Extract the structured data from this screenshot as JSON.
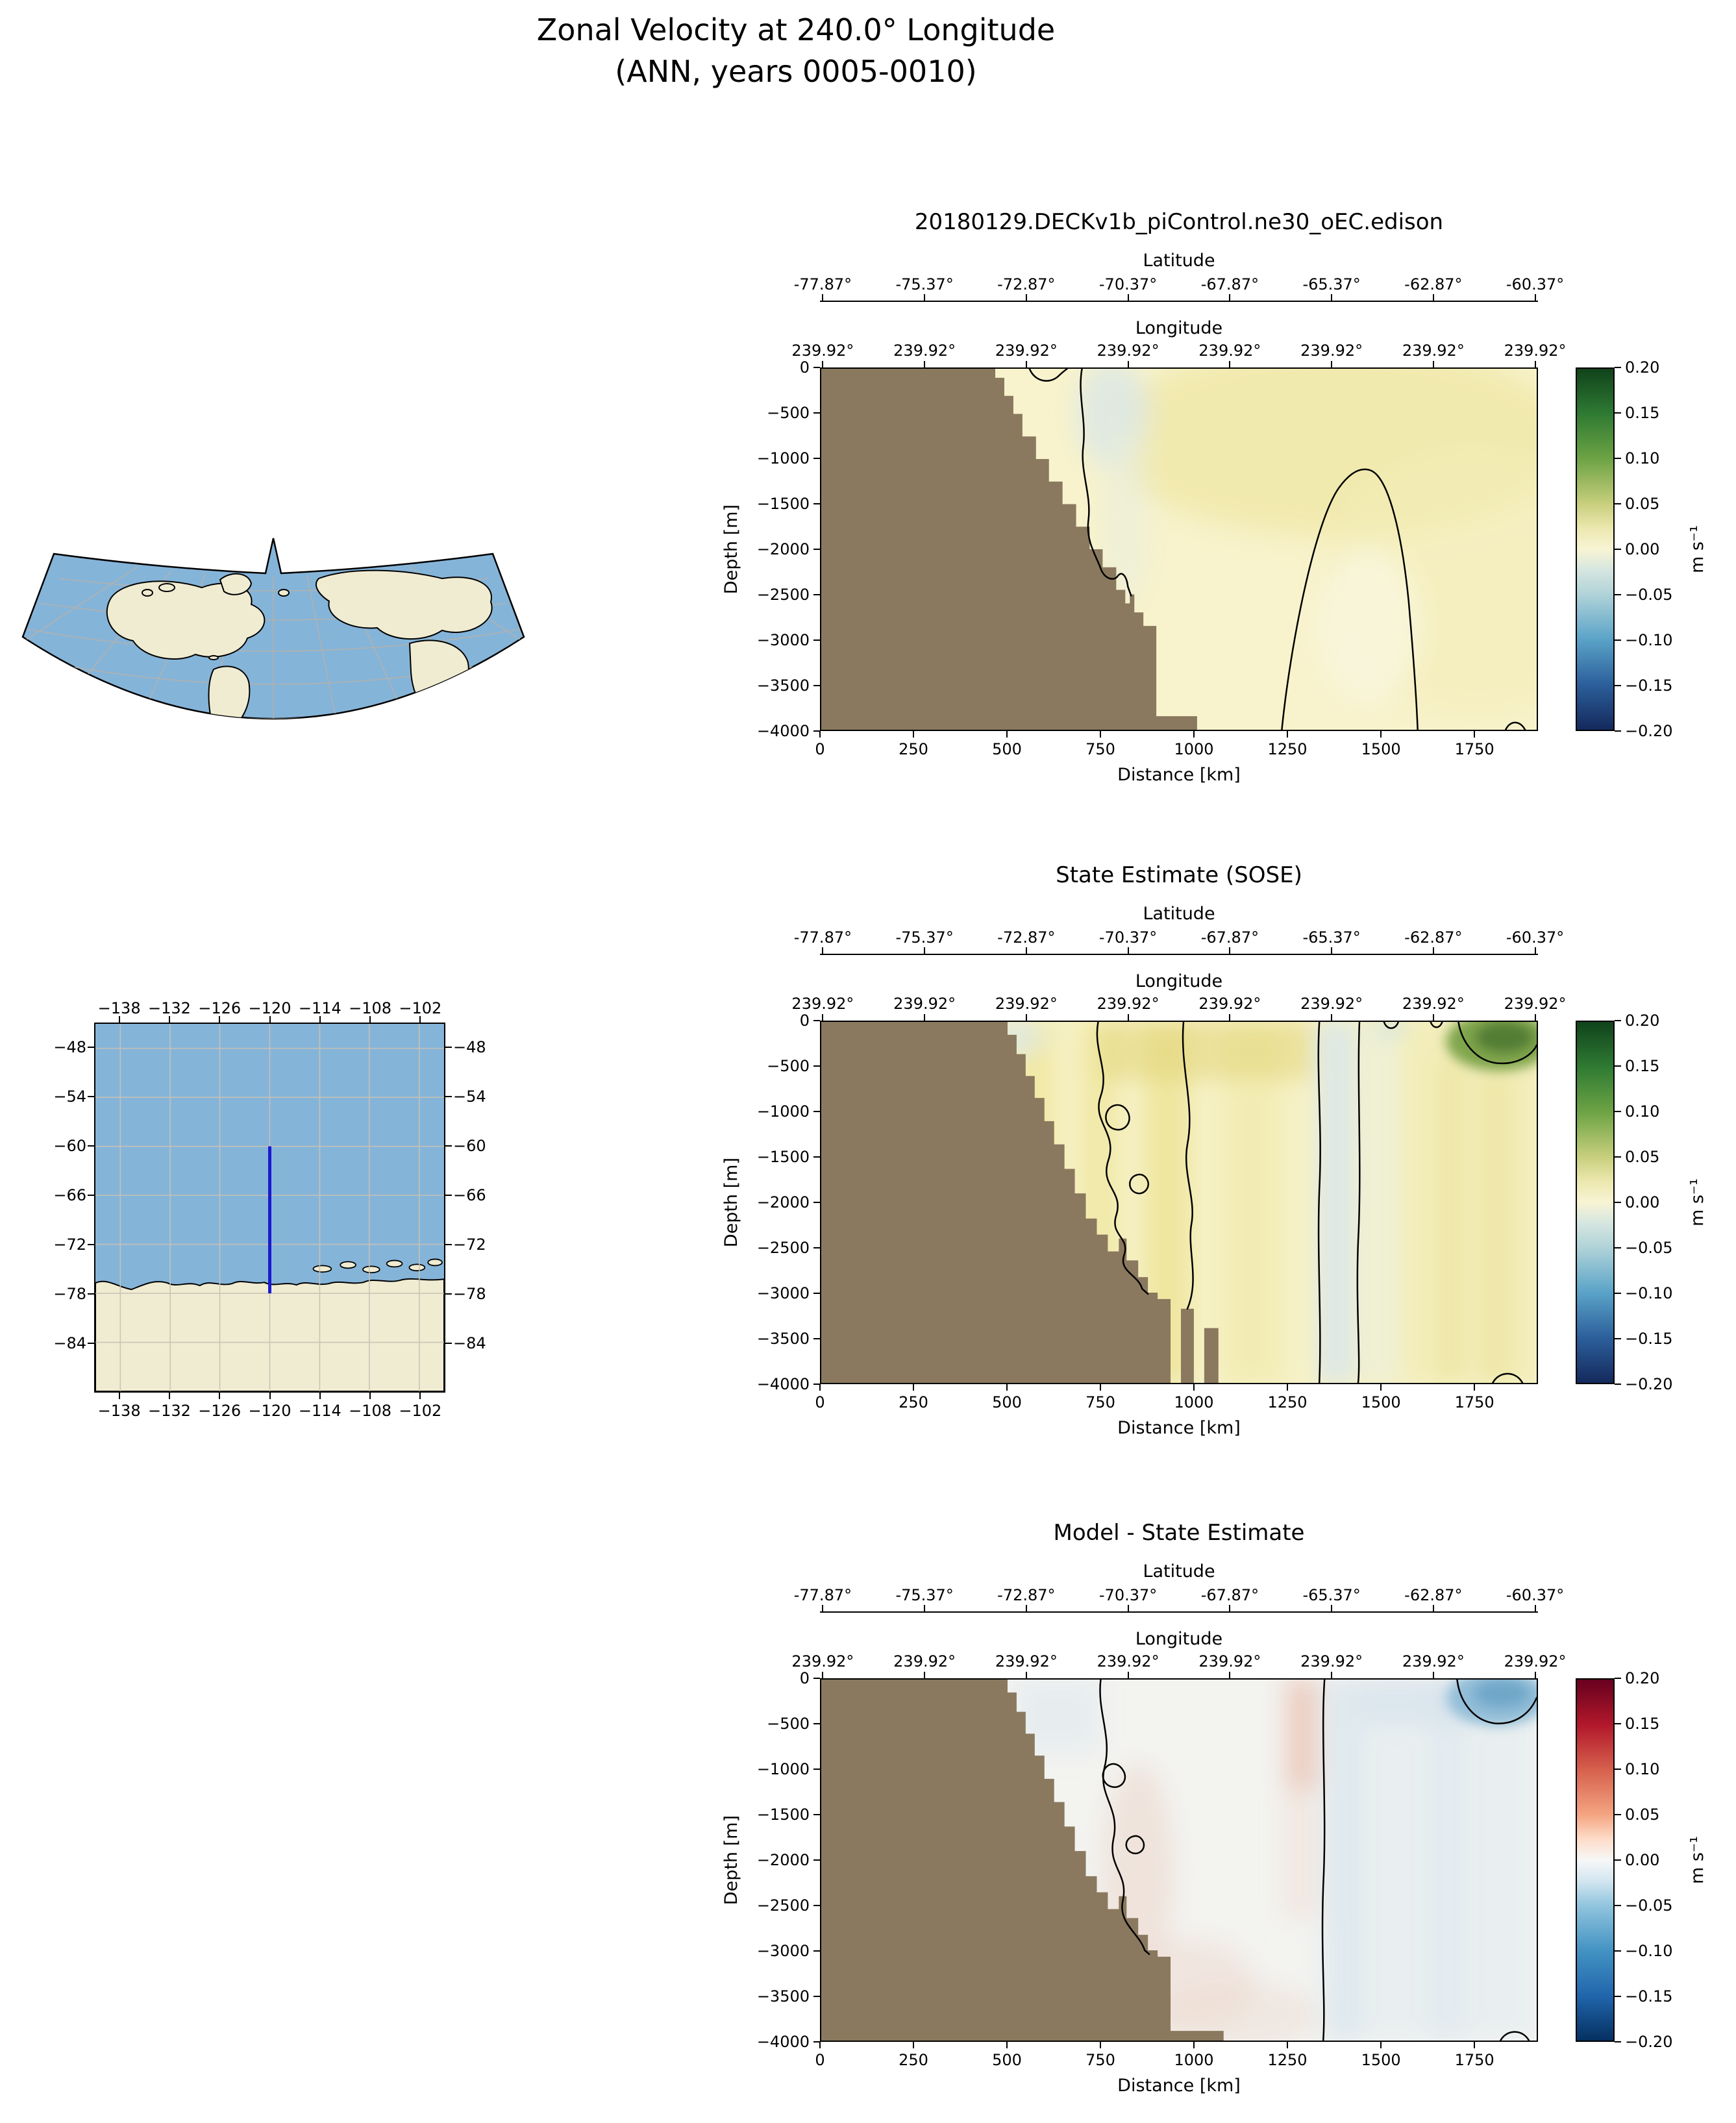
{
  "figure": {
    "title_line1": "Zonal Velocity at 240.0° Longitude",
    "title_line2": "(ANN, years 0005-0010)"
  },
  "colors": {
    "ocean": "#85b4d9",
    "land_map": "#f0ecd2",
    "terrain": "#8a795e",
    "transect": "#1a1acf",
    "contour": "#000000"
  },
  "axes": {
    "latitude_label": "Latitude",
    "longitude_label": "Longitude",
    "depth_label": "Depth [m]",
    "distance_label": "Distance [km]",
    "colorbar_label": "m s⁻¹",
    "latitude_ticks": [
      "-77.87°",
      "-75.37°",
      "-72.87°",
      "-70.37°",
      "-67.87°",
      "-65.37°",
      "-62.87°",
      "-60.37°"
    ],
    "longitude_ticks": [
      "239.92°",
      "239.92°",
      "239.92°",
      "239.92°",
      "239.92°",
      "239.92°",
      "239.92°",
      "239.92°"
    ],
    "depth_ticks": [
      "0",
      "−500",
      "−1000",
      "−1500",
      "−2000",
      "−2500",
      "−3000",
      "−3500",
      "−4000"
    ],
    "distance_ticks": [
      "0",
      "250",
      "500",
      "750",
      "1000",
      "1250",
      "1500",
      "1750"
    ],
    "colorbar_ticks": [
      "0.20",
      "0.15",
      "0.10",
      "0.05",
      "0.00",
      "−0.05",
      "−0.10",
      "−0.15",
      "−0.20"
    ]
  },
  "inset_map": {
    "x_ticks": [
      "−138",
      "−132",
      "−126",
      "−120",
      "−114",
      "−108",
      "−102"
    ],
    "y_ticks": [
      "−48",
      "−54",
      "−60",
      "−66",
      "−72",
      "−78",
      "−84"
    ]
  },
  "chart_data": [
    {
      "type": "heatmap",
      "title": "20180129.DECKv1b_piControl.ne30_oEC.edison",
      "xlabel": "Distance [km]",
      "ylabel": "Depth [m]",
      "xlim": [
        0,
        1920
      ],
      "ylim": [
        -4000,
        0
      ],
      "x_ticks": [
        0,
        250,
        500,
        750,
        1000,
        1250,
        1500,
        1750
      ],
      "y_ticks": [
        0,
        -500,
        -1000,
        -1500,
        -2000,
        -2500,
        -3000,
        -3500,
        -4000
      ],
      "top_axis_latitude": {
        "label": "Latitude",
        "ticks_deg": [
          -77.87,
          -75.37,
          -72.87,
          -70.37,
          -67.87,
          -65.37,
          -62.87,
          -60.37
        ]
      },
      "top_axis_longitude": {
        "label": "Longitude",
        "ticks_deg": [
          239.92,
          239.92,
          239.92,
          239.92,
          239.92,
          239.92,
          239.92,
          239.92
        ]
      },
      "colorbar": {
        "label": "m s⁻¹",
        "min": -0.2,
        "max": 0.2,
        "ticks": [
          0.2,
          0.15,
          0.1,
          0.05,
          0,
          -0.05,
          -0.1,
          -0.15,
          -0.2
        ],
        "colormap": "dark green / yellow-cream / dark navy diverging"
      },
      "bathymetry": "brown land staircase from x=0 at the surface deepening to -4000 m by x≈1000 km",
      "field_summary": [
        {
          "region": "most of the section",
          "value_ms": 0.02
        },
        {
          "region": "broad upper-right maximum near surface",
          "value_ms": 0.05
        },
        {
          "region": "narrow band hugging the slope, x≈500-750 km, 0 to -1500 m",
          "value_ms": -0.02
        },
        {
          "region": "closed dome x≈1250-1650 km rising to ≈ -1100 m",
          "value_ms": -0.01
        }
      ],
      "contours": "zero contour along the continental slope, around a dome centered near x≈1470 km, and a small arc at the bottom near x≈1880 km"
    },
    {
      "type": "heatmap",
      "title": "State Estimate (SOSE)",
      "xlabel": "Distance [km]",
      "ylabel": "Depth [m]",
      "xlim": [
        0,
        1920
      ],
      "ylim": [
        -4000,
        0
      ],
      "x_ticks": [
        0,
        250,
        500,
        750,
        1000,
        1250,
        1500,
        1750
      ],
      "y_ticks": [
        0,
        -500,
        -1000,
        -1500,
        -2000,
        -2500,
        -3000,
        -3500,
        -4000
      ],
      "top_axis_latitude": {
        "label": "Latitude",
        "ticks_deg": [
          -77.87,
          -75.37,
          -72.87,
          -70.37,
          -67.87,
          -65.37,
          -62.87,
          -60.37
        ]
      },
      "top_axis_longitude": {
        "label": "Longitude",
        "ticks_deg": [
          239.92,
          239.92,
          239.92,
          239.92,
          239.92,
          239.92,
          239.92,
          239.92
        ]
      },
      "colorbar": {
        "label": "m s⁻¹",
        "min": -0.2,
        "max": 0.2,
        "ticks": [
          0.2,
          0.15,
          0.1,
          0.05,
          0,
          -0.05,
          -0.1,
          -0.15,
          -0.2
        ],
        "colormap": "dark green / yellow-cream / dark navy diverging"
      },
      "bathymetry": "brown land staircase to -4000 m by x≈950 km with narrow ocean slots cut into it between x≈950-1070 km",
      "field_summary": [
        {
          "region": "banded positive jets between x≈750-1300 km",
          "value_ms": 0.07
        },
        {
          "region": "narrow negative column x≈1340-1440 km over full depth",
          "value_ms": -0.02
        },
        {
          "region": "strong surface patch x≈1720-1950 km above -600 m",
          "value_ms": 0.17
        },
        {
          "region": "background east of slope",
          "value_ms": 0.03
        }
      ],
      "contours": "meandering zero contour over the slope, two quasi-vertical zero contours near x≈1340 and 1440 km, closed contour around the strong surface patch, small arcs at the surface and near the bottom right"
    },
    {
      "type": "heatmap",
      "title": "Model - State Estimate",
      "xlabel": "Distance [km]",
      "ylabel": "Depth [m]",
      "xlim": [
        0,
        1920
      ],
      "ylim": [
        -4000,
        0
      ],
      "x_ticks": [
        0,
        250,
        500,
        750,
        1000,
        1250,
        1500,
        1750
      ],
      "y_ticks": [
        0,
        -500,
        -1000,
        -1500,
        -2000,
        -2500,
        -3000,
        -3500,
        -4000
      ],
      "top_axis_latitude": {
        "label": "Latitude",
        "ticks_deg": [
          -77.87,
          -75.37,
          -72.87,
          -70.37,
          -67.87,
          -65.37,
          -62.87,
          -60.37
        ]
      },
      "top_axis_longitude": {
        "label": "Longitude",
        "ticks_deg": [
          239.92,
          239.92,
          239.92,
          239.92,
          239.92,
          239.92,
          239.92,
          239.92
        ]
      },
      "colorbar": {
        "label": "m s⁻¹",
        "min": -0.2,
        "max": 0.2,
        "ticks": [
          0.2,
          0.15,
          0.1,
          0.05,
          0,
          -0.05,
          -0.1,
          -0.15,
          -0.2
        ],
        "colormap": "dark red / white / dark blue diverging (RdBu)"
      },
      "bathymetry": "same brown staircase as above, bottom shelf extending to x≈1080 km",
      "field_summary": [
        {
          "region": "pink positive band x≈1250-1330 km near surface",
          "value_ms": 0.05
        },
        {
          "region": "blue negative patch at surface x≈1780-1930 km",
          "value_ms": -0.08
        },
        {
          "region": "pale blue region east of x≈1350 km",
          "value_ms": -0.03
        },
        {
          "region": "pinkish anomalies over the slope at mid depth",
          "value_ms": 0.03
        },
        {
          "region": "remainder of section",
          "value_ms": 0.0
        }
      ],
      "contours": "wiggly zero contour along the slope with pinched-off loops, vertical zero contour near x≈1345 km, contour around the upper-right blue patch, small arc at bottom right"
    },
    {
      "type": "map",
      "name": "overview-projection-map",
      "description": "Fan-shaped conic projection overview map: blue ocean, beige continents (North America centered, Greenland, Eurasia, Africa, South America), black coastlines, gray graticule"
    },
    {
      "type": "map",
      "name": "transect-location-map",
      "x_ticks_deg": [
        -138,
        -132,
        -126,
        -120,
        -114,
        -108,
        -102
      ],
      "y_ticks_deg": [
        -48,
        -54,
        -60,
        -66,
        -72,
        -78,
        -84
      ],
      "transect": {
        "longitude": -120,
        "latitude_range": [
          -60,
          -78
        ]
      },
      "description": "Regional map near the Antarctic coast with gray graticule, beige Antarctica below ≈74°S, and a blue meridional transect line at 120°W spanning 60°S-78°S"
    }
  ]
}
